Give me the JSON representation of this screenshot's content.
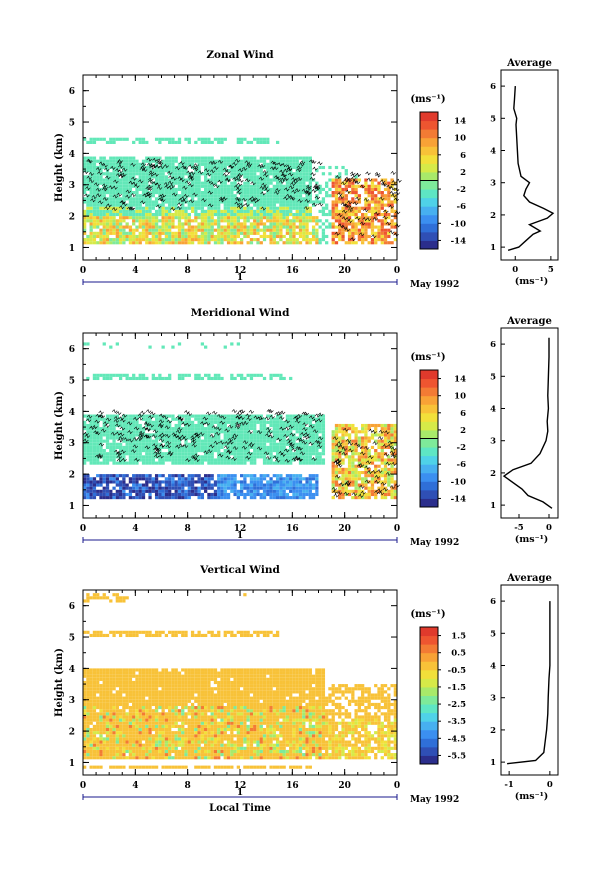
{
  "chart_data": [
    {
      "type": "heatmap",
      "title": "Zonal Wind",
      "xlabel": "",
      "ylabel": "Height (km)",
      "xlim": [
        0,
        24
      ],
      "ylim": [
        0.6,
        6.5
      ],
      "xticks": [
        "0",
        "4",
        "8",
        "12",
        "16",
        "20",
        "0"
      ],
      "yticks": [
        "1",
        "2",
        "3",
        "4",
        "5",
        "6"
      ],
      "date_axis": {
        "label": "1",
        "date": "May 1992"
      },
      "colorbar": {
        "unit": "(ms⁻¹)",
        "ticks": [
          "14",
          "10",
          "6",
          "2",
          "-2",
          "-6",
          "-10",
          "-14"
        ],
        "range": [
          -16,
          16
        ]
      },
      "profile": {
        "title": "Average",
        "xlabel": "(ms⁻¹)",
        "xticks": [
          "0",
          "5"
        ],
        "xlim": [
          -2,
          6
        ],
        "points": [
          [
            -1.0,
            0.9
          ],
          [
            0.5,
            1.0
          ],
          [
            1.5,
            1.2
          ],
          [
            2.5,
            1.4
          ],
          [
            3.5,
            1.5
          ],
          [
            2.0,
            1.7
          ],
          [
            4.5,
            1.9
          ],
          [
            5.3,
            2.05
          ],
          [
            4.0,
            2.2
          ],
          [
            2.0,
            2.4
          ],
          [
            1.2,
            2.6
          ],
          [
            1.5,
            2.8
          ],
          [
            2.0,
            3.0
          ],
          [
            0.8,
            3.2
          ],
          [
            0.4,
            3.6
          ],
          [
            0.3,
            4.0
          ],
          [
            0.2,
            4.4
          ],
          [
            0.1,
            4.8
          ],
          [
            0.2,
            5.0
          ],
          [
            -0.2,
            5.3
          ],
          [
            -0.1,
            5.6
          ],
          [
            0.0,
            6.0
          ]
        ]
      }
    },
    {
      "type": "heatmap",
      "title": "Meridional Wind",
      "xlabel": "",
      "ylabel": "Height (km)",
      "xlim": [
        0,
        24
      ],
      "ylim": [
        0.6,
        6.5
      ],
      "xticks": [
        "0",
        "4",
        "8",
        "12",
        "16",
        "20",
        "0"
      ],
      "yticks": [
        "1",
        "2",
        "3",
        "4",
        "5",
        "6"
      ],
      "date_axis": {
        "label": "1",
        "date": "May 1992"
      },
      "colorbar": {
        "unit": "(ms⁻¹)",
        "ticks": [
          "14",
          "10",
          "6",
          "2",
          "-2",
          "-6",
          "-10",
          "-14"
        ],
        "range": [
          -16,
          16
        ]
      },
      "profile": {
        "title": "Average",
        "xlabel": "(ms⁻¹)",
        "xticks": [
          "-5",
          "0"
        ],
        "xlim": [
          -8,
          1.5
        ],
        "points": [
          [
            0.5,
            0.9
          ],
          [
            -1.0,
            1.1
          ],
          [
            -3.5,
            1.3
          ],
          [
            -4.5,
            1.5
          ],
          [
            -7.5,
            1.9
          ],
          [
            -6.0,
            2.1
          ],
          [
            -3.0,
            2.3
          ],
          [
            -1.5,
            2.6
          ],
          [
            -0.5,
            3.0
          ],
          [
            -0.2,
            3.3
          ],
          [
            -0.3,
            3.6
          ],
          [
            -0.1,
            4.0
          ],
          [
            -0.2,
            4.4
          ],
          [
            -0.1,
            5.0
          ],
          [
            0.0,
            5.6
          ],
          [
            0.0,
            6.2
          ]
        ]
      }
    },
    {
      "type": "heatmap",
      "title": "Vertical Wind",
      "xlabel": "Local Time",
      "ylabel": "Height (km)",
      "xlim": [
        0,
        24
      ],
      "ylim": [
        0.6,
        6.5
      ],
      "xticks": [
        "0",
        "4",
        "8",
        "12",
        "16",
        "20",
        "0"
      ],
      "yticks": [
        "1",
        "2",
        "3",
        "4",
        "5",
        "6"
      ],
      "date_axis": {
        "label": "1",
        "date": "May 1992"
      },
      "colorbar": {
        "unit": "(ms⁻¹)",
        "ticks": [
          "1.5",
          "0.5",
          "-0.5",
          "-1.5",
          "-2.5",
          "-3.5",
          "-4.5",
          "-5.5"
        ],
        "range": [
          -6,
          2
        ]
      },
      "profile": {
        "title": "Average",
        "xlabel": "(ms⁻¹)",
        "xticks": [
          "-1",
          "0"
        ],
        "xlim": [
          -1.2,
          0.2
        ],
        "points": [
          [
            -1.05,
            0.95
          ],
          [
            -0.35,
            1.05
          ],
          [
            -0.15,
            1.3
          ],
          [
            -0.12,
            1.6
          ],
          [
            -0.08,
            2.0
          ],
          [
            -0.05,
            2.5
          ],
          [
            -0.04,
            3.0
          ],
          [
            -0.02,
            3.6
          ],
          [
            0.0,
            4.0
          ],
          [
            0.0,
            5.0
          ],
          [
            0.0,
            6.0
          ]
        ]
      }
    }
  ],
  "colorbar_colors": [
    "#2b2e8c",
    "#2f4fb5",
    "#2f6fd8",
    "#3b8ff0",
    "#47b0f0",
    "#4fd2e8",
    "#5ee6c4",
    "#7eea9a",
    "#a8ea6a",
    "#d6ea48",
    "#f2e03a",
    "#f8c238",
    "#f8a236",
    "#f37b34",
    "#ee5530",
    "#e03a2c"
  ]
}
